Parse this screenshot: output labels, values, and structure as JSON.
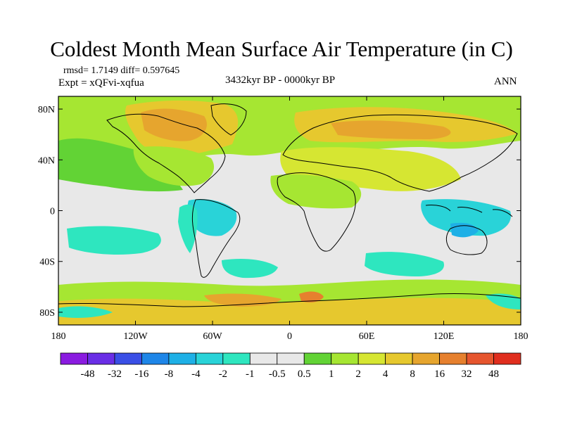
{
  "title": "Coldest Month Mean Surface Air Temperature (in C)",
  "stats": "rmsd= 1.7149 diff= 0.597645",
  "experiment": "Expt = xQFvi-xqfua",
  "period": "3432kyr BP - 0000kyr BP",
  "season": "ANN",
  "lat_labels": [
    "80N",
    "40N",
    "0",
    "40S",
    "80S"
  ],
  "lat_values": [
    80,
    40,
    0,
    -40,
    -80
  ],
  "lon_labels": [
    "180",
    "120W",
    "60W",
    "0",
    "60E",
    "120E",
    "180"
  ],
  "lon_values": [
    -180,
    -120,
    -60,
    0,
    60,
    120,
    180
  ],
  "colorbar": {
    "colors": [
      "#8a1be0",
      "#6a2ee6",
      "#3a4fe6",
      "#1e86e8",
      "#1eb0e6",
      "#29d3d8",
      "#2ee6bf",
      "#e8e8e8",
      "#62d335",
      "#a6e632",
      "#d6e632",
      "#e6c82e",
      "#e6a52e",
      "#e6802e",
      "#e6552e",
      "#e02e1e"
    ],
    "labels": [
      "-48",
      "-32",
      "-16",
      "-8",
      "-4",
      "-2",
      "-1",
      "-0.5",
      "0.5",
      "1",
      "2",
      "4",
      "8",
      "16",
      "32",
      "48"
    ]
  },
  "palette": {
    "neutral": "#e8e8e8",
    "green": "#62d335",
    "yellowgreen": "#a6e632",
    "yellow": "#d6e632",
    "orange": "#e6c82e",
    "deeporange": "#e6a52e",
    "red": "#e6802e",
    "cyan": "#2ee6bf",
    "lightblue": "#29d3d8",
    "blue": "#1eb0e6"
  }
}
